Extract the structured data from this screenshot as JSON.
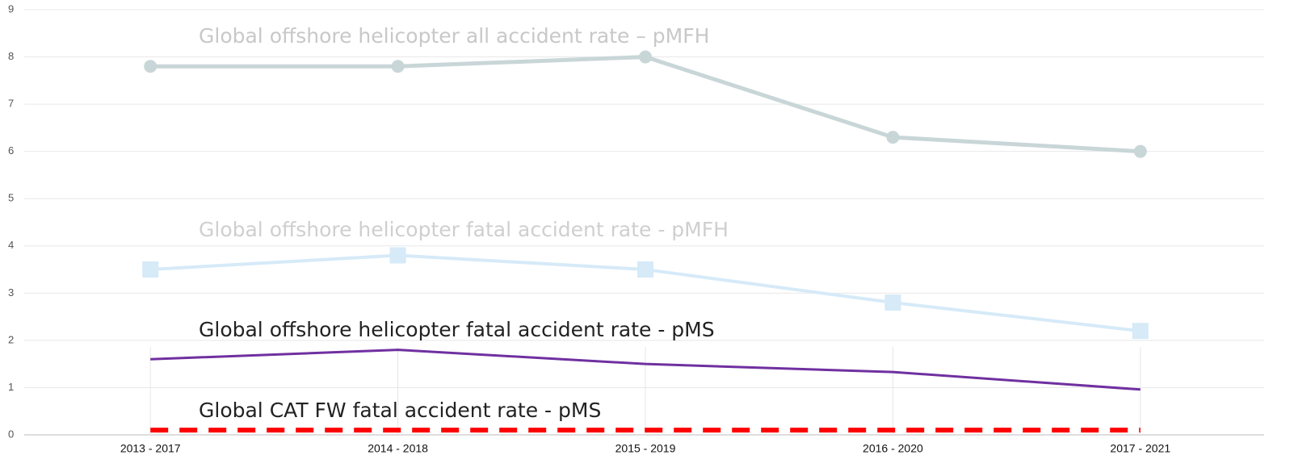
{
  "chart_data": {
    "type": "line",
    "categories": [
      "2013 - 2017",
      "2014 - 2018",
      "2015 - 2019",
      "2016 - 2020",
      "2017 - 2021"
    ],
    "series": [
      {
        "name": "Global offshore helicopter all accident rate – pMFH",
        "color": "#c9d6d8",
        "marker": "circle",
        "values": [
          7.8,
          7.8,
          8.0,
          6.3,
          6.0
        ]
      },
      {
        "name": "Global offshore helicopter fatal accident rate - pMFH",
        "color": "#d6eaf8",
        "marker": "square",
        "values": [
          3.5,
          3.8,
          3.5,
          2.8,
          2.2
        ]
      },
      {
        "name": "Global offshore helicopter fatal accident rate - pMS",
        "color": "#7030a0",
        "values": [
          1.6,
          1.8,
          1.5,
          1.33,
          0.96
        ]
      },
      {
        "name": "Global CAT FW fatal accident rate - pMS",
        "color": "#ff0000",
        "dashed": true,
        "values": [
          0.1,
          0.1,
          0.1,
          0.1,
          0.1
        ]
      }
    ],
    "ylim": [
      0,
      9
    ],
    "yticks": [
      0,
      1,
      2,
      3,
      4,
      5,
      6,
      7,
      8,
      9
    ],
    "grid": true
  }
}
